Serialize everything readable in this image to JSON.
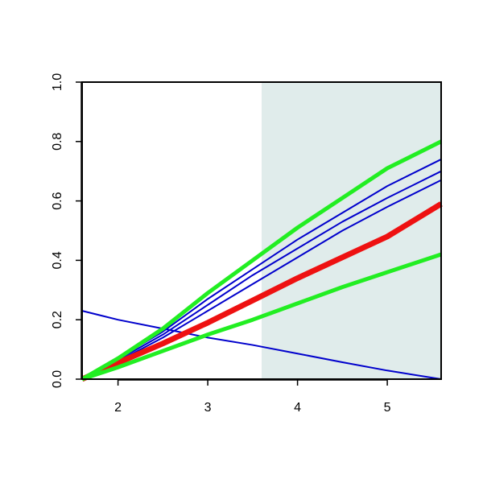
{
  "chart_data": {
    "type": "line",
    "x": [
      1.6,
      2.0,
      2.5,
      3.0,
      3.5,
      4.0,
      4.5,
      5.0,
      5.6
    ],
    "series": [
      {
        "color": "#0000cc",
        "width": 2,
        "values": [
          0.23,
          0.2,
          0.17,
          0.14,
          0.115,
          0.086,
          0.057,
          0.029,
          0.0
        ]
      },
      {
        "color": "#0000cc",
        "width": 2,
        "values": [
          0.0,
          0.07,
          0.16,
          0.27,
          0.37,
          0.47,
          0.56,
          0.65,
          0.74
        ]
      },
      {
        "color": "#0000cc",
        "width": 2,
        "values": [
          0.0,
          0.065,
          0.15,
          0.25,
          0.35,
          0.44,
          0.53,
          0.61,
          0.7
        ]
      },
      {
        "color": "#0000cc",
        "width": 2,
        "values": [
          0.0,
          0.06,
          0.14,
          0.23,
          0.32,
          0.41,
          0.5,
          0.58,
          0.67
        ]
      },
      {
        "color": "#ee1111",
        "width": 7,
        "values": [
          0.0,
          0.055,
          0.12,
          0.19,
          0.265,
          0.34,
          0.41,
          0.48,
          0.59
        ]
      },
      {
        "color": "#22ee22",
        "width": 5,
        "values": [
          0.0,
          0.07,
          0.17,
          0.29,
          0.4,
          0.51,
          0.61,
          0.71,
          0.8
        ]
      },
      {
        "color": "#22ee22",
        "width": 5,
        "values": [
          0.0,
          0.04,
          0.095,
          0.15,
          0.2,
          0.255,
          0.31,
          0.36,
          0.42
        ]
      }
    ],
    "shade": {
      "xlim": [
        3.6,
        5.6
      ],
      "color": "#e0eceb"
    },
    "xlim": [
      1.6,
      5.6
    ],
    "xticks": [
      2,
      3,
      4,
      5
    ],
    "ylim": [
      0,
      1
    ],
    "yticks": [
      {
        "value": 0,
        "label": "0.0"
      },
      0.2,
      0.4,
      0.6,
      0.8,
      {
        "value": 1,
        "label": "1.0"
      }
    ]
  }
}
